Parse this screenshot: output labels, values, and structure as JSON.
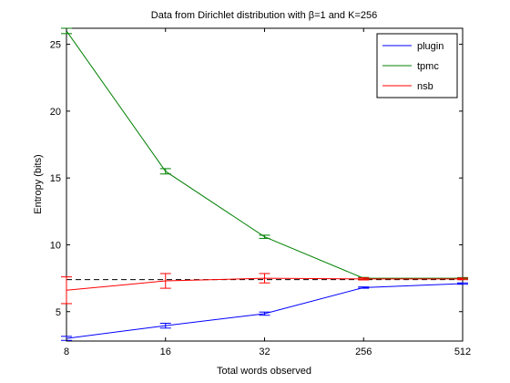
{
  "chart_data": {
    "type": "line",
    "title": "Data from Dirichlet distribution with β=1 and K=256",
    "xlabel": "Total words observed",
    "ylabel": "Entropy (bits)",
    "categories": [
      "8",
      "16",
      "32",
      "256",
      "512"
    ],
    "ylim": [
      2.8,
      26.2
    ],
    "yticks": [
      5,
      10,
      15,
      20,
      25
    ],
    "grid": false,
    "legend_position": "top-right",
    "reference_line": {
      "y": 7.4,
      "style": "dashed",
      "color": "#000000"
    },
    "series": [
      {
        "name": "plugin",
        "color": "#0000ff",
        "values": [
          3.0,
          3.95,
          4.85,
          6.8,
          7.1
        ],
        "errors": [
          0.15,
          0.18,
          0.12,
          0.05,
          0.05
        ]
      },
      {
        "name": "tpmc",
        "color": "#008000",
        "values": [
          26.0,
          15.5,
          10.6,
          7.5,
          7.5
        ],
        "errors": [
          0.2,
          0.2,
          0.12,
          0.06,
          0.05
        ]
      },
      {
        "name": "nsb",
        "color": "#ff0000",
        "values": [
          6.6,
          7.3,
          7.5,
          7.45,
          7.45
        ],
        "errors": [
          1.0,
          0.55,
          0.35,
          0.08,
          0.06
        ]
      }
    ]
  }
}
